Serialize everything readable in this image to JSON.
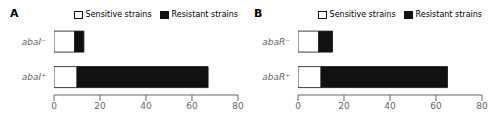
{
  "chart_data": [
    {
      "type": "bar",
      "title": "A",
      "orientation": "horizontal",
      "stacked": true,
      "categories": [
        "abaI⁻",
        "abaI⁺"
      ],
      "series": [
        {
          "name": "Sensitive strains",
          "color": "#ffffff",
          "values": [
            9,
            10
          ]
        },
        {
          "name": "Resistant strains",
          "color": "#111111",
          "values": [
            4,
            57
          ]
        }
      ],
      "xlim": [
        0,
        80
      ],
      "xticks": [
        0,
        20,
        40,
        60,
        80
      ],
      "legend": "upper right"
    },
    {
      "type": "bar",
      "title": "B",
      "orientation": "horizontal",
      "stacked": true,
      "categories": [
        "abaR⁻",
        "abaR⁺"
      ],
      "series": [
        {
          "name": "Sensitive strains",
          "color": "#ffffff",
          "values": [
            9,
            10
          ]
        },
        {
          "name": "Resistant strains",
          "color": "#111111",
          "values": [
            6,
            55
          ]
        }
      ],
      "xlim": [
        0,
        80
      ],
      "xticks": [
        0,
        20,
        40,
        60,
        80
      ],
      "legend": "upper right"
    }
  ]
}
